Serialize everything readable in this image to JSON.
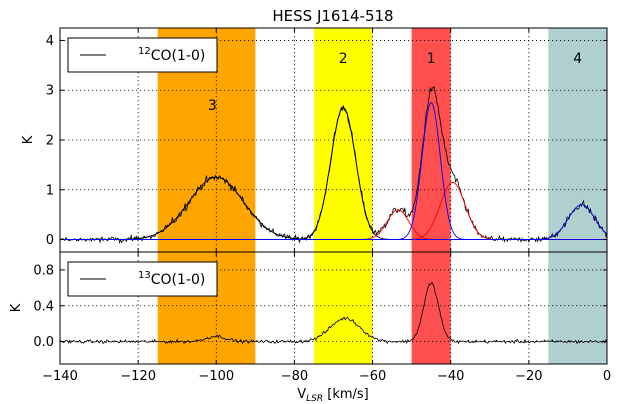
{
  "title": "HESS J1614-518",
  "chart_data": [
    {
      "type": "line",
      "panel": "top",
      "title": "HESS J1614-518",
      "xlabel": "",
      "ylabel": "K",
      "xlim": [
        -140,
        0
      ],
      "ylim": [
        -0.25,
        4.25
      ],
      "x_ticks": [
        -140,
        -120,
        -100,
        -80,
        -60,
        -40,
        -20,
        0
      ],
      "y_ticks": [
        0,
        1,
        2,
        3,
        4
      ],
      "y_tick_labels": [
        "0",
        "1",
        "2",
        "3",
        "4"
      ],
      "grid": true,
      "legend": {
        "position": "top-left",
        "entries": [
          "12CO(1-0)"
        ],
        "label_sup": "12",
        "label_main": "CO(1-0)"
      },
      "bands": [
        {
          "label": "3",
          "x_range": [
            -115,
            -90
          ],
          "color": "#ffa500",
          "label_x": -101,
          "label_y": 2.6
        },
        {
          "label": "2",
          "x_range": [
            -75,
            -60
          ],
          "color": "#ffff00",
          "label_x": -67.5,
          "label_y": 3.55
        },
        {
          "label": "1",
          "x_range": [
            -50,
            -40
          ],
          "color": "#ff4f4f",
          "label_x": -45,
          "label_y": 3.55
        },
        {
          "label": "4",
          "x_range": [
            -15,
            0
          ],
          "color": "#b0d0d0",
          "label_x": -7.5,
          "label_y": 3.55
        }
      ],
      "series": [
        {
          "name": "12CO(1-0)",
          "kind": "spectrum",
          "color": "#000000"
        },
        {
          "name": "",
          "kind": "gaussian-fit",
          "color": "#000000",
          "components": [
            {
              "center": -100,
              "amplitude": 1.25,
              "fwhm": 16.5
            },
            {
              "center": -67.5,
              "amplitude": 2.65,
              "fwhm": 7.5
            }
          ]
        },
        {
          "name": "",
          "kind": "gaussian-fit",
          "color": "#ff0000",
          "components": [
            {
              "center": -53.5,
              "amplitude": 0.6,
              "fwhm": 6.5
            },
            {
              "center": -39.5,
              "amplitude": 1.15,
              "fwhm": 7.5
            }
          ]
        },
        {
          "name": "",
          "kind": "gaussian-fit",
          "color": "#0000ff",
          "components": [
            {
              "center": -45,
              "amplitude": 2.75,
              "fwhm": 5.5
            },
            {
              "center": -6.5,
              "amplitude": 0.7,
              "fwhm": 8
            }
          ]
        }
      ]
    },
    {
      "type": "line",
      "panel": "bottom",
      "title": "",
      "xlabel": "V_LSR [km/s]",
      "ylabel": "K",
      "xlim": [
        -140,
        0
      ],
      "ylim": [
        -0.25,
        1.0
      ],
      "x_ticks": [
        -140,
        -120,
        -100,
        -80,
        -60,
        -40,
        -20,
        0
      ],
      "x_tick_labels": [
        "−140",
        "−120",
        "−100",
        "−80",
        "−60",
        "−40",
        "−20",
        "0"
      ],
      "y_ticks": [
        0,
        0.4,
        0.8
      ],
      "y_tick_labels": [
        "0.0",
        "0.4",
        "0.8"
      ],
      "grid": true,
      "legend": {
        "position": "top-left",
        "entries": [
          "13CO(1-0)"
        ],
        "label_sup": "13",
        "label_main": "CO(1-0)"
      },
      "bands": [
        {
          "x_range": [
            -115,
            -90
          ],
          "color": "#ffa500"
        },
        {
          "x_range": [
            -75,
            -60
          ],
          "color": "#ffff00"
        },
        {
          "x_range": [
            -50,
            -40
          ],
          "color": "#ff4f4f"
        },
        {
          "x_range": [
            -15,
            0
          ],
          "color": "#b0d0d0"
        }
      ],
      "series": [
        {
          "name": "13CO(1-0)",
          "kind": "spectrum",
          "color": "#000000",
          "features": [
            {
              "center": -67,
              "amplitude": 0.26,
              "fwhm": 9
            },
            {
              "center": -45,
              "amplitude": 0.65,
              "fwhm": 4.5
            },
            {
              "center": -100,
              "amplitude": 0.06,
              "fwhm": 6
            }
          ]
        }
      ]
    }
  ],
  "xlabel_parts": {
    "main": "V",
    "sub": "LSR",
    "rest": " [km/s]"
  }
}
